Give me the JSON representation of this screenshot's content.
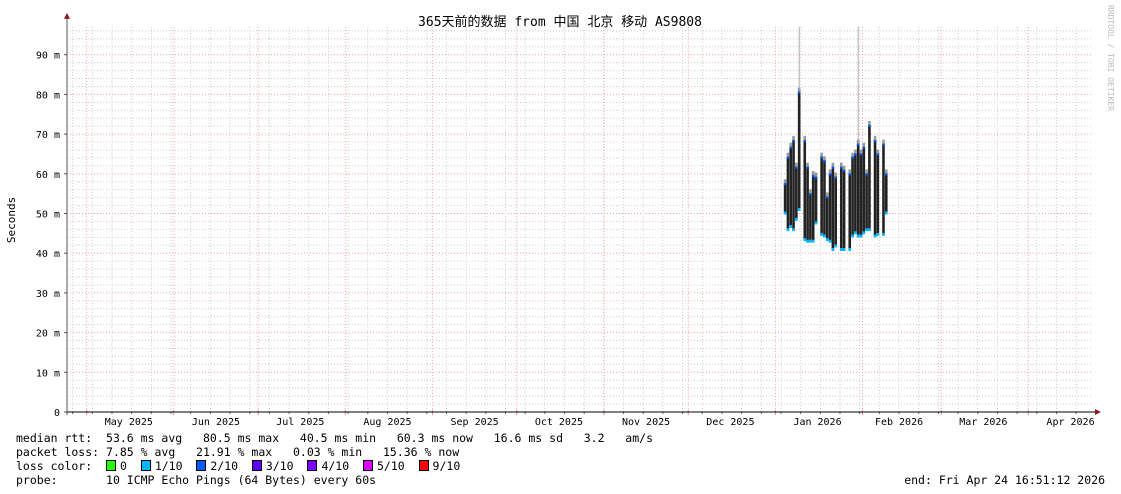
{
  "chart_data": {
    "type": "bar",
    "title": "365天前的数据 from  中国 北京 移动 AS9808",
    "ylabel": "Seconds",
    "watermark": "RRDTOOL / TOBI OETIKER",
    "x_range": [
      "2025-04-24",
      "2026-04-24"
    ],
    "ylim_ms": [
      0,
      97
    ],
    "y_ticks": [
      {
        "v": 0,
        "label": "0"
      },
      {
        "v": 10,
        "label": "10 m"
      },
      {
        "v": 20,
        "label": "20 m"
      },
      {
        "v": 30,
        "label": "30 m"
      },
      {
        "v": 40,
        "label": "40 m"
      },
      {
        "v": 50,
        "label": "50 m"
      },
      {
        "v": 60,
        "label": "60 m"
      },
      {
        "v": 70,
        "label": "70 m"
      },
      {
        "v": 80,
        "label": "80 m"
      },
      {
        "v": 90,
        "label": "90 m"
      }
    ],
    "x_ticks": [
      {
        "date": "2025-05-16",
        "label": "May 2025"
      },
      {
        "date": "2025-06-16",
        "label": "Jun 2025"
      },
      {
        "date": "2025-07-16",
        "label": "Jul 2025"
      },
      {
        "date": "2025-08-16",
        "label": "Aug 2025"
      },
      {
        "date": "2025-09-16",
        "label": "Sep 2025"
      },
      {
        "date": "2025-10-16",
        "label": "Oct 2025"
      },
      {
        "date": "2025-11-16",
        "label": "Nov 2025"
      },
      {
        "date": "2025-12-16",
        "label": "Dec 2025"
      },
      {
        "date": "2026-01-16",
        "label": "Jan 2026"
      },
      {
        "date": "2026-02-14",
        "label": "Feb 2026"
      },
      {
        "date": "2026-03-16",
        "label": "Mar 2026"
      },
      {
        "date": "2026-04-16",
        "label": "Apr 2026"
      }
    ],
    "grid": true,
    "unit": "ms",
    "series": [
      {
        "date": "2026-01-04",
        "lo": 50.0,
        "hi": 57.6
      },
      {
        "date": "2026-01-05",
        "lo": 45.8,
        "hi": 64.3
      },
      {
        "date": "2026-01-06",
        "lo": 46.6,
        "hi": 66.8
      },
      {
        "date": "2026-01-07",
        "lo": 45.8,
        "hi": 68.5
      },
      {
        "date": "2026-01-08",
        "lo": 48.4,
        "hi": 61.8
      },
      {
        "date": "2026-01-09",
        "lo": 50.9,
        "hi": 80.7,
        "max": 97
      },
      {
        "date": "2026-01-11",
        "lo": 43.3,
        "hi": 68.5
      },
      {
        "date": "2026-01-12",
        "lo": 42.9,
        "hi": 61.8
      },
      {
        "date": "2026-01-13",
        "lo": 42.9,
        "hi": 55.1
      },
      {
        "date": "2026-01-14",
        "lo": 42.9,
        "hi": 59.7
      },
      {
        "date": "2026-01-15",
        "lo": 47.5,
        "hi": 59.3
      },
      {
        "date": "2026-01-17",
        "lo": 44.6,
        "hi": 64.3
      },
      {
        "date": "2026-01-18",
        "lo": 44.2,
        "hi": 63.4
      },
      {
        "date": "2026-01-19",
        "lo": 43.3,
        "hi": 54.3
      },
      {
        "date": "2026-01-20",
        "lo": 42.9,
        "hi": 60.1
      },
      {
        "date": "2026-01-21",
        "lo": 40.8,
        "hi": 61.8
      },
      {
        "date": "2026-01-22",
        "lo": 41.7,
        "hi": 59.3
      },
      {
        "date": "2026-01-24",
        "lo": 40.8,
        "hi": 61.8
      },
      {
        "date": "2026-01-25",
        "lo": 40.8,
        "hi": 61.0
      },
      {
        "date": "2026-01-27",
        "lo": 40.8,
        "hi": 60.1
      },
      {
        "date": "2026-01-28",
        "lo": 44.2,
        "hi": 64.3
      },
      {
        "date": "2026-01-29",
        "lo": 45.0,
        "hi": 65.1
      },
      {
        "date": "2026-01-30",
        "lo": 44.2,
        "hi": 67.6,
        "max": 97
      },
      {
        "date": "2026-01-31",
        "lo": 44.2,
        "hi": 65.1
      },
      {
        "date": "2026-02-01",
        "lo": 45.0,
        "hi": 66.8
      },
      {
        "date": "2026-02-02",
        "lo": 45.8,
        "hi": 60.1
      },
      {
        "date": "2026-02-03",
        "lo": 45.8,
        "hi": 72.3
      },
      {
        "date": "2026-02-05",
        "lo": 44.2,
        "hi": 68.5
      },
      {
        "date": "2026-02-06",
        "lo": 44.6,
        "hi": 65.1
      },
      {
        "date": "2026-02-08",
        "lo": 44.6,
        "hi": 67.6
      },
      {
        "date": "2026-02-09",
        "lo": 50.0,
        "hi": 60.1
      }
    ]
  },
  "stats": {
    "median_label": "median rtt:",
    "median": "53.6 ms avg   80.5 ms max   40.5 ms min   60.3 ms now   16.6 ms sd   3.2   am/s",
    "loss_label": "packet loss:",
    "loss": "7.85 % avg   21.91 % max   0.03 % min   15.36 % now",
    "color_label": "loss color:",
    "loss_colors": [
      {
        "label": "0",
        "color": "#26ff00"
      },
      {
        "label": "1/10",
        "color": "#00b8ff"
      },
      {
        "label": "2/10",
        "color": "#0059ff"
      },
      {
        "label": "3/10",
        "color": "#5e00ff"
      },
      {
        "label": "4/10",
        "color": "#7e00ff"
      },
      {
        "label": "5/10",
        "color": "#dd00ff"
      },
      {
        "label": "9/10",
        "color": "#ff0000"
      }
    ],
    "probe_label": "probe:",
    "probe": "10 ICMP Echo Pings (64 Bytes) every 60s",
    "end": "end: Fri Apr 24 16:51:12 2026"
  }
}
